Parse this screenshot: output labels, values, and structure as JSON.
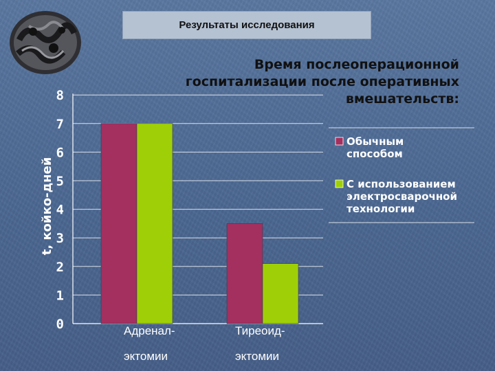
{
  "header": {
    "title": "Результаты исследования"
  },
  "logo": {
    "icon": "rubber-hose-coil-icon"
  },
  "colors": {
    "series_1": "#a3305f",
    "series_2": "#9fd007",
    "grid": "#ffffff"
  },
  "chart_data": {
    "type": "bar",
    "title_lines": [
      "Время послеоперационной",
      "госпитализации после оперативных",
      "вмешательств:"
    ],
    "ylabel": "t, койко-дней",
    "y_ticks": [
      "0",
      "1",
      "2",
      "3",
      "4",
      "5",
      "6",
      "7",
      "8"
    ],
    "ylim": [
      0,
      8
    ],
    "categories": [
      {
        "line1": "Адренал-",
        "line2": "эктомии"
      },
      {
        "line1": "Тиреоид-",
        "line2": "эктомии"
      }
    ],
    "series": [
      {
        "name_lines": [
          "Обычным",
          "способом"
        ],
        "values": [
          7,
          3.5
        ]
      },
      {
        "name_lines": [
          "С использованием",
          "электросварочной",
          "технологии"
        ],
        "values": [
          7,
          2.1
        ]
      }
    ],
    "grid": true,
    "legend_position": "right"
  }
}
